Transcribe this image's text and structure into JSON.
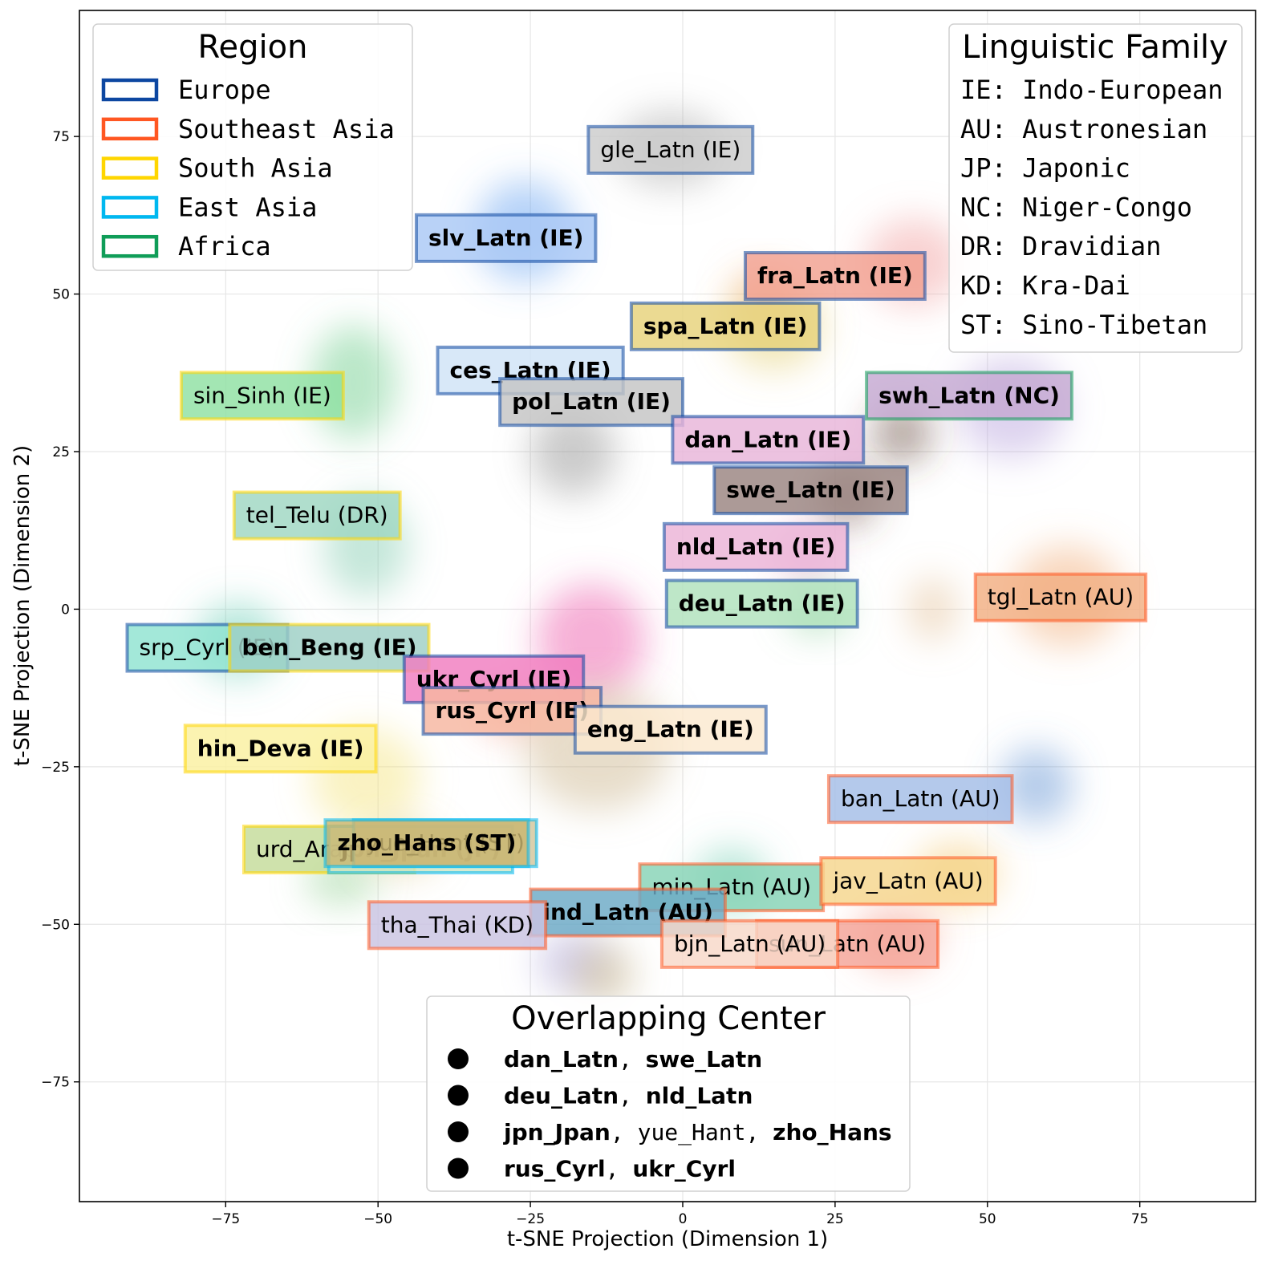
{
  "chart_data": {
    "type": "scatter",
    "subtype": "t-SNE density embedding with language labels",
    "xlabel": "t-SNE Projection (Dimension 1)",
    "ylabel": "t-SNE Projection (Dimension 2)",
    "xlim": [
      -99,
      94
    ],
    "ylim": [
      -94,
      95
    ],
    "xticks": [
      -75,
      -50,
      -25,
      0,
      25,
      50,
      75
    ],
    "yticks": [
      75,
      50,
      25,
      0,
      -25,
      -50,
      -75
    ],
    "xtick_labels": [
      "−75",
      "−50",
      "−25",
      "0",
      "25",
      "50",
      "75"
    ],
    "ytick_labels": [
      "75",
      "50",
      "25",
      "0",
      "−25",
      "−50",
      "−75"
    ],
    "grid": true,
    "region_colors": {
      "Europe": "#0d47a1",
      "Southeast Asia": "#ff5722",
      "South Asia": "#ffd600",
      "East Asia": "#00b8f0",
      "Africa": "#0f9d58"
    },
    "labels": [
      {
        "text": "gle_Latn (IE)",
        "x": -2,
        "y": 73,
        "bold": false,
        "region": "Europe",
        "fill": "#cccccc"
      },
      {
        "text": "slv_Latn (IE)",
        "x": -29,
        "y": 59,
        "bold": true,
        "region": "Europe",
        "fill": "#a9c8f5"
      },
      {
        "text": "fra_Latn (IE)",
        "x": 25,
        "y": 53,
        "bold": true,
        "region": "Europe",
        "fill": "#f2a090"
      },
      {
        "text": "spa_Latn (IE)",
        "x": 7,
        "y": 45,
        "bold": true,
        "region": "Europe",
        "fill": "#e6d27a"
      },
      {
        "text": "ces_Latn (IE)",
        "x": -25,
        "y": 38,
        "bold": true,
        "region": "Europe",
        "fill": "#cfe3f7"
      },
      {
        "text": "pol_Latn (IE)",
        "x": -15,
        "y": 33,
        "bold": true,
        "region": "Europe",
        "fill": "#c4c4c4"
      },
      {
        "text": "sin_Sinh (IE)",
        "x": -69,
        "y": 34,
        "bold": false,
        "region": "South Asia",
        "fill": "#8fe0a2"
      },
      {
        "text": "swh_Latn (NC)",
        "x": 47,
        "y": 34,
        "bold": true,
        "region": "Africa",
        "fill": "#c4a8d2"
      },
      {
        "text": "dan_Latn (IE)",
        "x": 14,
        "y": 27,
        "bold": true,
        "region": "Europe",
        "fill": "#e8b5d9"
      },
      {
        "text": "swe_Latn (IE)",
        "x": 21,
        "y": 19,
        "bold": true,
        "region": "Europe",
        "fill": "#9a8480"
      },
      {
        "text": "tel_Telu (DR)",
        "x": -60,
        "y": 15,
        "bold": false,
        "region": "South Asia",
        "fill": "#9fd7c2"
      },
      {
        "text": "nld_Latn (IE)",
        "x": 12,
        "y": 10,
        "bold": true,
        "region": "Europe",
        "fill": "#ebb3d7"
      },
      {
        "text": "deu_Latn (IE)",
        "x": 13,
        "y": 1,
        "bold": true,
        "region": "Europe",
        "fill": "#b0e2bc"
      },
      {
        "text": "tgl_Latn (AU)",
        "x": 62,
        "y": 2,
        "bold": false,
        "region": "Southeast Asia",
        "fill": "#f2ae82"
      },
      {
        "text": "srp_Cyrl (IE)",
        "x": -78,
        "y": -6,
        "bold": false,
        "region": "Europe",
        "fill": "#8fe3d1"
      },
      {
        "text": "ben_Beng (IE)",
        "x": -58,
        "y": -6,
        "bold": true,
        "region": "South Asia",
        "fill": "#9fcfc6"
      },
      {
        "text": "ukr_Cyrl (IE)",
        "x": -31,
        "y": -11,
        "bold": true,
        "region": "Europe",
        "fill": "#f07cc0"
      },
      {
        "text": "rus_Cyrl (IE)",
        "x": -28,
        "y": -16,
        "bold": true,
        "region": "Europe",
        "fill": "#f7b6a0"
      },
      {
        "text": "eng_Latn (IE)",
        "x": -2,
        "y": -19,
        "bold": true,
        "region": "Europe",
        "fill": "#fbe9d0"
      },
      {
        "text": "hin_Deva (IE)",
        "x": -66,
        "y": -22,
        "bold": true,
        "region": "South Asia",
        "fill": "#faf0a0"
      },
      {
        "text": "ban_Latn (AU)",
        "x": 39,
        "y": -30,
        "bold": false,
        "region": "Southeast Asia",
        "fill": "#a3bde6"
      },
      {
        "text": "urd_Arab (IE)",
        "x": -58,
        "y": -38,
        "bold": false,
        "region": "South Asia",
        "fill": "#c5dc9a"
      },
      {
        "text": "jpn_Jpan (JP)",
        "x": -43,
        "y": -38,
        "bold": true,
        "region": "East Asia",
        "fill": "#cde6c8"
      },
      {
        "text": "yue_Hant (ST)",
        "x": -39,
        "y": -37,
        "bold": false,
        "region": "East Asia",
        "fill": "#d2c69c"
      },
      {
        "text": "zho_Hans (ST)",
        "x": -42,
        "y": -37,
        "bold": true,
        "region": "East Asia",
        "fill": "#c9b670"
      },
      {
        "text": "min_Latn (AU)",
        "x": 8,
        "y": -44,
        "bold": false,
        "region": "Southeast Asia",
        "fill": "#86d3b6"
      },
      {
        "text": "jav_Latn (AU)",
        "x": 37,
        "y": -43,
        "bold": false,
        "region": "Southeast Asia",
        "fill": "#f5d58c"
      },
      {
        "text": "ind_Latn (AU)",
        "x": -9,
        "y": -48,
        "bold": true,
        "region": "Southeast Asia",
        "fill": "#6ba9c6"
      },
      {
        "text": "tha_Thai (KD)",
        "x": -37,
        "y": -50,
        "bold": false,
        "region": "Southeast Asia",
        "fill": "#c9c3e2"
      },
      {
        "text": "sun_Latn (AU)",
        "x": 27,
        "y": -53,
        "bold": false,
        "region": "Southeast Asia",
        "fill": "#f4a598"
      },
      {
        "text": "bjn_Latn (AU)",
        "x": 11,
        "y": -53,
        "bold": false,
        "region": "Southeast Asia",
        "fill": "#f8d8c8"
      }
    ]
  },
  "legend_region": {
    "title": "Region",
    "items": [
      {
        "label": "Europe",
        "color": "#0d47a1"
      },
      {
        "label": "Southeast Asia",
        "color": "#ff5722"
      },
      {
        "label": "South Asia",
        "color": "#ffd600"
      },
      {
        "label": "East Asia",
        "color": "#00b8f0"
      },
      {
        "label": "Africa",
        "color": "#0f9d58"
      }
    ]
  },
  "legend_family": {
    "title": "Linguistic Family",
    "items": [
      "IE: Indo-European",
      "AU: Austronesian",
      "JP: Japonic",
      "NC: Niger-Congo",
      "DR: Dravidian",
      "KD: Kra-Dai",
      "ST: Sino-Tibetan"
    ]
  },
  "legend_overlap": {
    "title": "Overlapping Center",
    "rows": [
      [
        {
          "t": "dan_Latn",
          "b": true
        },
        {
          "t": ", ",
          "b": false
        },
        {
          "t": "swe_Latn",
          "b": true
        }
      ],
      [
        {
          "t": "deu_Latn",
          "b": true
        },
        {
          "t": ", ",
          "b": false
        },
        {
          "t": "nld_Latn",
          "b": true
        }
      ],
      [
        {
          "t": "jpn_Jpan",
          "b": true
        },
        {
          "t": ", ",
          "b": false
        },
        {
          "t": "yue_Hant",
          "b": false
        },
        {
          "t": ", ",
          "b": false
        },
        {
          "t": "zho_Hans",
          "b": true
        }
      ],
      [
        {
          "t": "rus_Cyrl",
          "b": true
        },
        {
          "t": ", ",
          "b": false
        },
        {
          "t": "ukr_Cyrl",
          "b": true
        }
      ]
    ]
  },
  "blobs": [
    {
      "x": -2,
      "y": 73,
      "rx": 9,
      "ry": 6,
      "color": "#9e9e9e"
    },
    {
      "x": -26,
      "y": 60,
      "rx": 8,
      "ry": 8,
      "color": "#5c9bf0"
    },
    {
      "x": 38,
      "y": 55,
      "rx": 8,
      "ry": 7,
      "color": "#ef9a9a"
    },
    {
      "x": 15,
      "y": 45,
      "rx": 8,
      "ry": 7,
      "color": "#e0c860"
    },
    {
      "x": 13,
      "y": 50,
      "rx": 5,
      "ry": 4,
      "color": "#f4b080"
    },
    {
      "x": -54,
      "y": 36,
      "rx": 7,
      "ry": 9,
      "color": "#66c985"
    },
    {
      "x": 54,
      "y": 32,
      "rx": 9,
      "ry": 8,
      "color": "#b39ddb"
    },
    {
      "x": 36,
      "y": 28,
      "rx": 5,
      "ry": 5,
      "color": "#5d4037"
    },
    {
      "x": -18,
      "y": 25,
      "rx": 7,
      "ry": 7,
      "color": "#8c8c8c"
    },
    {
      "x": 27,
      "y": 18,
      "rx": 5,
      "ry": 5,
      "color": "#6d4c41"
    },
    {
      "x": -52,
      "y": 10,
      "rx": 7,
      "ry": 8,
      "color": "#7fc9ae"
    },
    {
      "x": 20,
      "y": 9,
      "rx": 5,
      "ry": 4,
      "color": "#e48fc6"
    },
    {
      "x": 22,
      "y": 0,
      "rx": 5,
      "ry": 4,
      "color": "#7cc98f"
    },
    {
      "x": 63,
      "y": 2,
      "rx": 9,
      "ry": 8,
      "color": "#f0a46a"
    },
    {
      "x": 41,
      "y": 0,
      "rx": 4,
      "ry": 5,
      "color": "#e0b98a"
    },
    {
      "x": -73,
      "y": -5,
      "rx": 7,
      "ry": 6,
      "color": "#57c7ae"
    },
    {
      "x": -15,
      "y": -5,
      "rx": 9,
      "ry": 9,
      "color": "#ec4fa4"
    },
    {
      "x": -28,
      "y": -16,
      "rx": 6,
      "ry": 4,
      "color": "#f2907a"
    },
    {
      "x": -14,
      "y": -22,
      "rx": 12,
      "ry": 10,
      "color": "#c9b48a"
    },
    {
      "x": -52,
      "y": -27,
      "rx": 9,
      "ry": 8,
      "color": "#f5e27a"
    },
    {
      "x": 58,
      "y": -28,
      "rx": 6,
      "ry": 6,
      "color": "#5a8fd0"
    },
    {
      "x": -56,
      "y": -43,
      "rx": 6,
      "ry": 4,
      "color": "#8ccf8c"
    },
    {
      "x": -46,
      "y": -38,
      "rx": 6,
      "ry": 4,
      "color": "#d8c27a"
    },
    {
      "x": 45,
      "y": -42,
      "rx": 7,
      "ry": 5,
      "color": "#f2c060"
    },
    {
      "x": 8,
      "y": -43,
      "rx": 6,
      "ry": 5,
      "color": "#5ec7a8"
    },
    {
      "x": -18,
      "y": -56,
      "rx": 6,
      "ry": 5,
      "color": "#a8a0d8"
    },
    {
      "x": 35,
      "y": -52,
      "rx": 7,
      "ry": 5,
      "color": "#f28b7b"
    },
    {
      "x": -13,
      "y": -58,
      "rx": 5,
      "ry": 5,
      "color": "#c2ae7c"
    }
  ]
}
